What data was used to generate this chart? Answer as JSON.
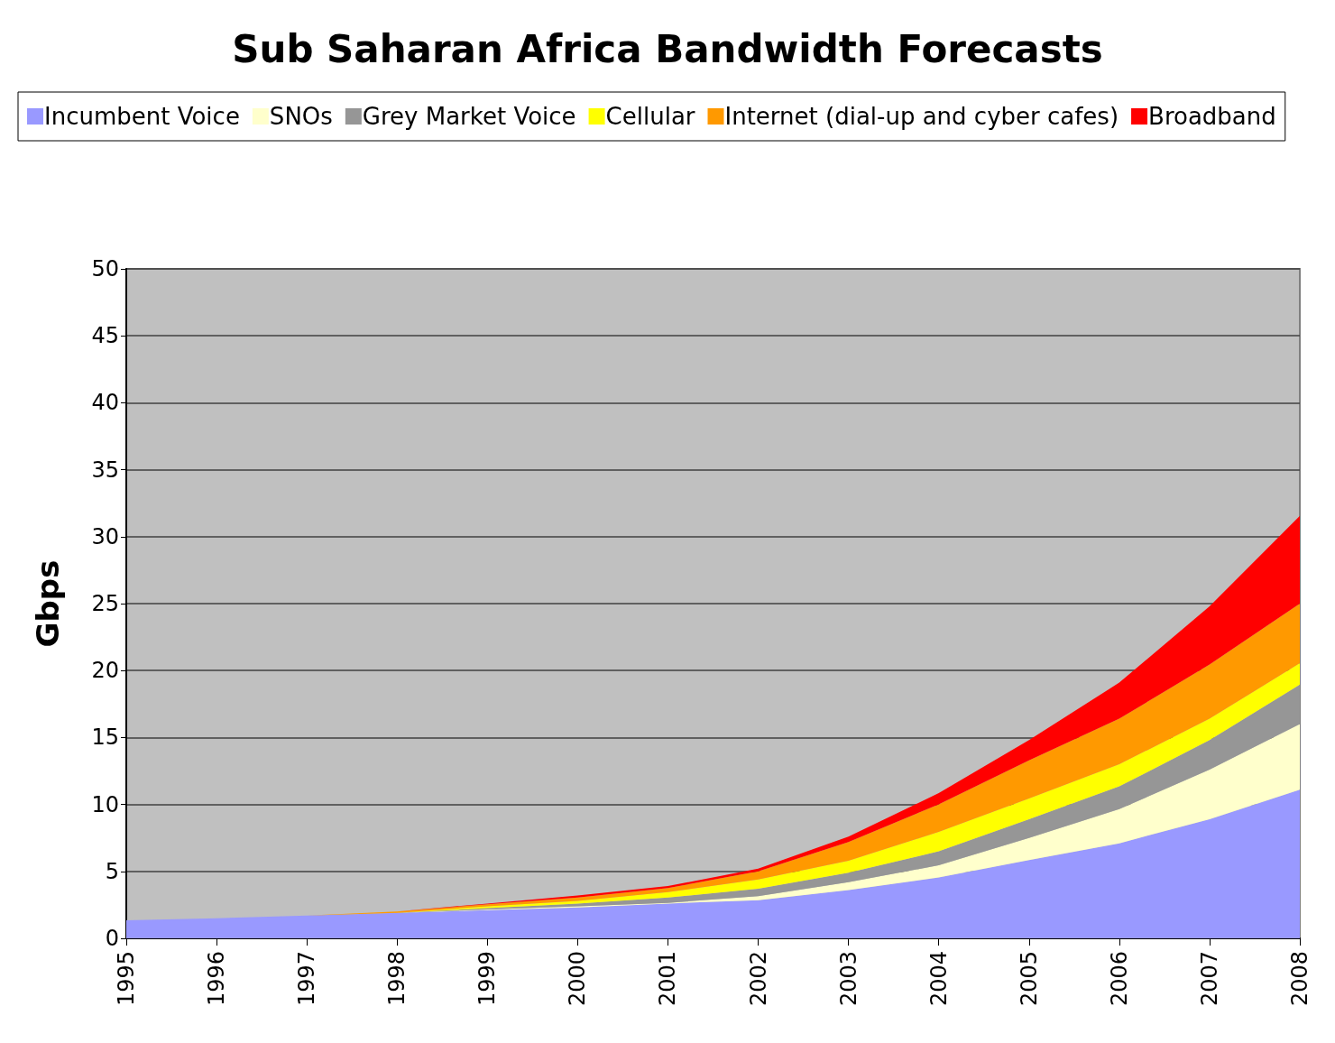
{
  "chart_data": {
    "type": "area",
    "title": "Sub Saharan Africa Bandwidth Forecasts",
    "ylabel": "Gbps",
    "stacked": true,
    "grid": "y",
    "legend": "top",
    "marker": "none",
    "categories": [
      "1995",
      "1996",
      "1997",
      "1998",
      "1999",
      "2000",
      "2001",
      "2002",
      "2003",
      "2004",
      "2005",
      "2006",
      "2007",
      "2008"
    ],
    "ylim": [
      0,
      50
    ],
    "yticks": [
      0,
      5,
      10,
      15,
      20,
      25,
      30,
      35,
      40,
      45,
      50
    ],
    "series": [
      {
        "name": "Incumbent Voice",
        "color": "#9999ff",
        "values": [
          1.35,
          1.5,
          1.7,
          1.9,
          2.1,
          2.3,
          2.6,
          2.85,
          3.6,
          4.55,
          5.85,
          7.1,
          8.9,
          11.1
        ]
      },
      {
        "name": "SNOs",
        "color": "#ffffcc",
        "values": [
          0,
          0,
          0,
          0,
          0.05,
          0.1,
          0.05,
          0.3,
          0.6,
          0.9,
          1.65,
          2.55,
          3.7,
          4.9
        ]
      },
      {
        "name": "Grey Market Voice",
        "color": "#969696",
        "values": [
          0,
          0,
          0,
          0,
          0.1,
          0.2,
          0.4,
          0.55,
          0.7,
          1.05,
          1.4,
          1.7,
          2.2,
          2.95
        ]
      },
      {
        "name": "Cellular",
        "color": "#ffff00",
        "values": [
          0,
          0,
          0,
          0,
          0.15,
          0.2,
          0.4,
          0.7,
          0.9,
          1.45,
          1.55,
          1.65,
          1.6,
          1.6
        ]
      },
      {
        "name": "Internet (dial-up and cyber cafes)",
        "color": "#ff9900",
        "values": [
          0,
          0,
          0,
          0.1,
          0.15,
          0.25,
          0.3,
          0.6,
          1.4,
          2.05,
          2.85,
          3.4,
          4.05,
          4.45
        ]
      },
      {
        "name": "Broadband",
        "color": "#ff0000",
        "values": [
          0,
          0,
          0,
          0,
          0.05,
          0.15,
          0.15,
          0.2,
          0.4,
          0.85,
          1.5,
          2.7,
          4.35,
          6.55
        ]
      }
    ]
  }
}
